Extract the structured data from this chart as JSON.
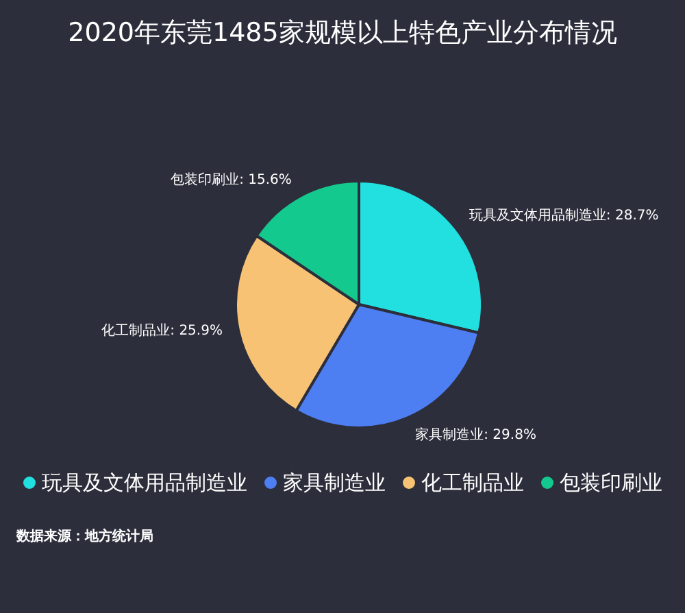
{
  "chart_data": {
    "type": "pie",
    "title": "2020年东莞1485家规模以上特色产业分布情况",
    "categories": [
      "玩具及文体用品制造业",
      "家具制造业",
      "化工制品业",
      "包装印刷业"
    ],
    "values": [
      28.7,
      29.8,
      25.9,
      15.6
    ],
    "value_labels": [
      "玩具及文体用品制造业: 28.7%",
      "家具制造业: 29.8%",
      "化工制品业: 25.9%",
      "包装印刷业: 15.6%"
    ],
    "colors": [
      "#22e0df",
      "#4d7ef2",
      "#f7c274",
      "#14c98e"
    ],
    "legend": "bottom",
    "annotations": [
      "数据来源：地方统计局"
    ]
  }
}
